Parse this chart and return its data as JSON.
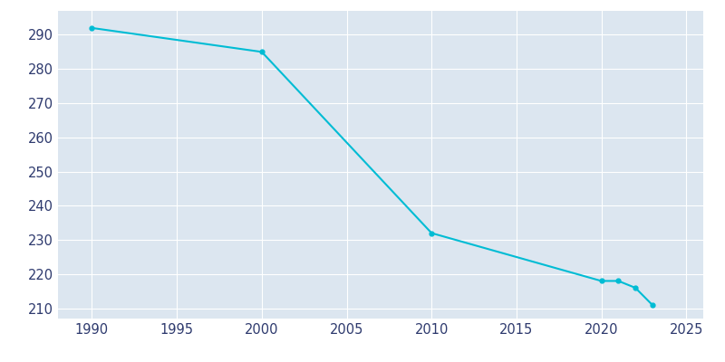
{
  "years": [
    1990,
    2000,
    2010,
    2020,
    2021,
    2022,
    2023
  ],
  "population": [
    292,
    285,
    232,
    218,
    218,
    216,
    211
  ],
  "line_color": "#00bcd4",
  "marker_color": "#00bcd4",
  "background_color": "#dce6f0",
  "plot_background_color": "#dce6f0",
  "outer_background_color": "#ffffff",
  "grid_color": "#ffffff",
  "tick_label_color": "#2e3a6e",
  "xlim": [
    1988,
    2026
  ],
  "ylim": [
    207,
    297
  ],
  "yticks": [
    210,
    220,
    230,
    240,
    250,
    260,
    270,
    280,
    290
  ],
  "xticks": [
    1990,
    1995,
    2000,
    2005,
    2010,
    2015,
    2020,
    2025
  ]
}
